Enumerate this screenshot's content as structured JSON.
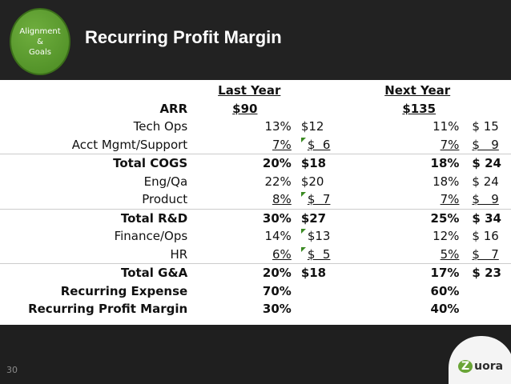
{
  "badge": {
    "line1": "Alignment",
    "line2": "&",
    "line3": "Goals"
  },
  "title": "Recurring Profit Margin",
  "headers": {
    "last_year": "Last Year",
    "next_year": "Next Year"
  },
  "arr": {
    "label": "ARR",
    "last": "$90",
    "next": "$135"
  },
  "rows": [
    {
      "label": "Tech Ops",
      "lp": "13%",
      "ld": "$12",
      "np": "11%",
      "nd": "$ 15",
      "bold": false
    },
    {
      "label": "Acct Mgmt/Support",
      "lp": "7%",
      "ld": "$  6",
      "np": "7%",
      "nd": "$   9",
      "bold": false
    },
    {
      "label": "Total COGS",
      "lp": "20%",
      "ld": "$18",
      "np": "18%",
      "nd": "$ 24",
      "bold": true
    },
    {
      "label": "Eng/Qa",
      "lp": "22%",
      "ld": "$20",
      "np": "18%",
      "nd": "$ 24",
      "bold": false
    },
    {
      "label": "Product",
      "lp": "8%",
      "ld": "$  7",
      "np": "7%",
      "nd": "$   9",
      "bold": false
    },
    {
      "label": "Total R&D",
      "lp": "30%",
      "ld": "$27",
      "np": "25%",
      "nd": "$ 34",
      "bold": true
    },
    {
      "label": "Finance/Ops",
      "lp": "14%",
      "ld": "$13",
      "np": "12%",
      "nd": "$ 16",
      "bold": false
    },
    {
      "label": "HR",
      "lp": "6%",
      "ld": "$  5",
      "np": "5%",
      "nd": "$   7",
      "bold": false
    },
    {
      "label": "Total G&A",
      "lp": "20%",
      "ld": "$18",
      "np": "17%",
      "nd": "$ 23",
      "bold": true
    },
    {
      "label": "Recurring Expense",
      "lp": "70%",
      "ld": "",
      "np": "60%",
      "nd": "",
      "bold": true
    },
    {
      "label": "Recurring Profit Margin",
      "lp": "30%",
      "ld": "",
      "np": "40%",
      "nd": "",
      "bold": true
    }
  ],
  "slide_number": "30",
  "logo": {
    "mark": "Z",
    "text": "uora"
  }
}
